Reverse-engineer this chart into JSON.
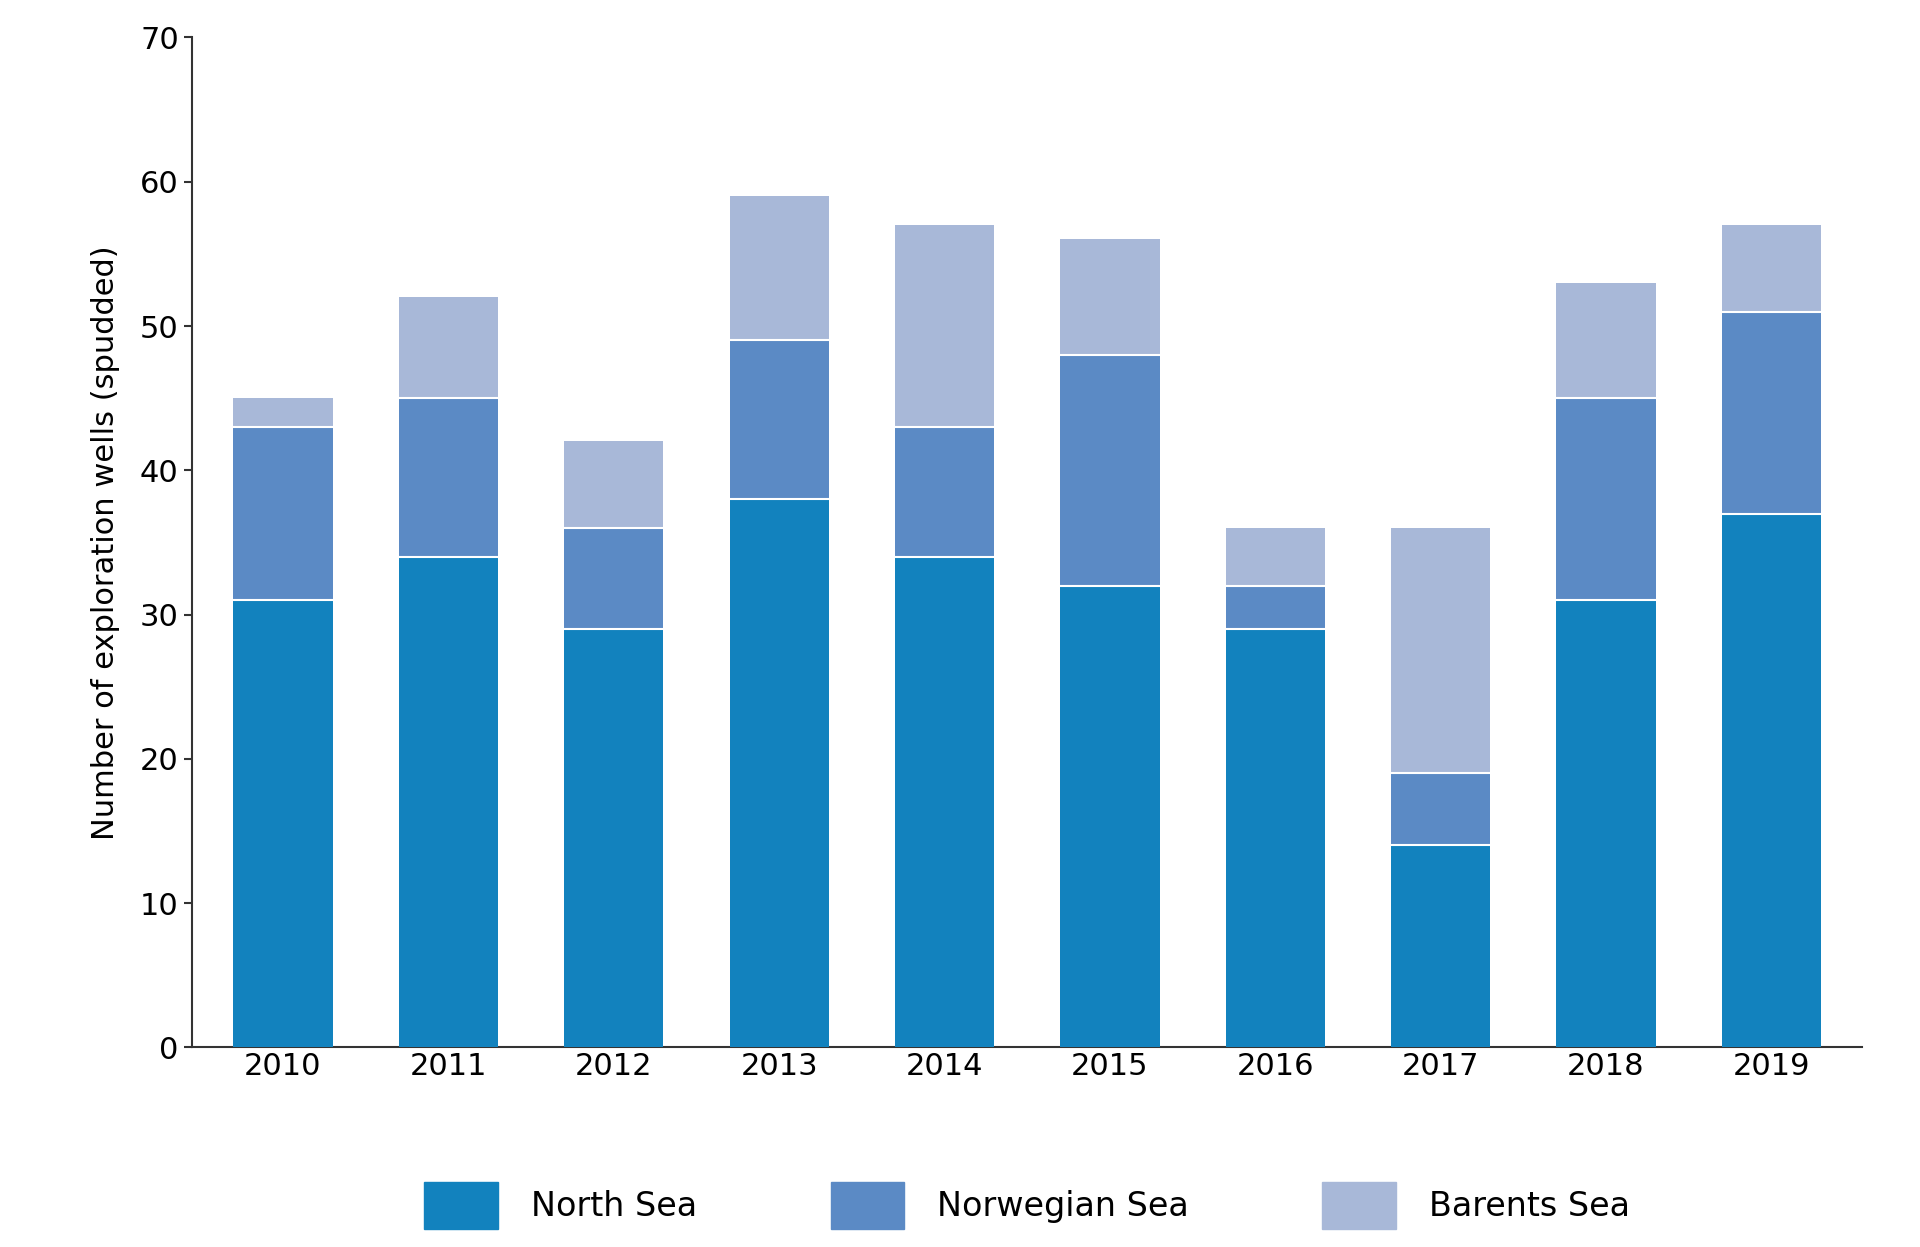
{
  "years": [
    "2010",
    "2011",
    "2012",
    "2013",
    "2014",
    "2015",
    "2016",
    "2017",
    "2018",
    "2019"
  ],
  "north_sea": [
    31,
    34,
    29,
    38,
    34,
    32,
    29,
    14,
    31,
    37
  ],
  "norwegian_sea": [
    12,
    11,
    7,
    11,
    9,
    16,
    3,
    5,
    14,
    14
  ],
  "barents_sea": [
    2,
    7,
    6,
    10,
    14,
    8,
    4,
    17,
    8,
    6
  ],
  "colors": {
    "north_sea": "#1282be",
    "norwegian_sea": "#5b8ac5",
    "barents_sea": "#a8b8d8"
  },
  "legend_labels": [
    "North Sea",
    "Norwegian Sea",
    "Barents Sea"
  ],
  "ylabel": "Number of exploration wells (spudded)",
  "ylim": [
    0,
    70
  ],
  "yticks": [
    0,
    10,
    20,
    30,
    40,
    50,
    60,
    70
  ],
  "bar_width": 0.6,
  "background_color": "#ffffff",
  "axis_fontsize": 22,
  "tick_fontsize": 22,
  "legend_fontsize": 24
}
